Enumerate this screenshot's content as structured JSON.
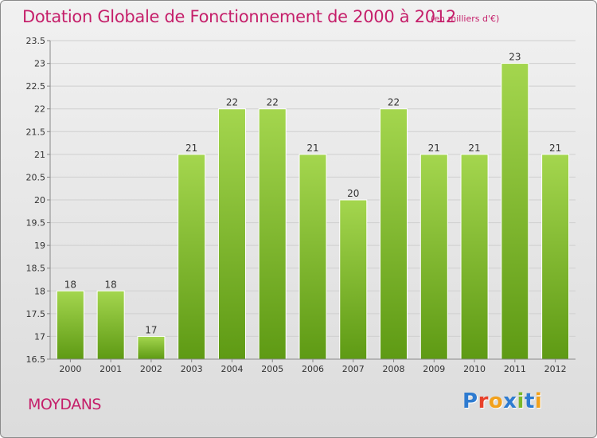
{
  "title": "Dotation Globale de Fonctionnement de 2000 à 2012",
  "unit_note": "(en milliers d'€)",
  "commune": "MOYDANS",
  "logo": {
    "text": "Proxiti",
    "colors": [
      "#2e7bd0",
      "#e8412b",
      "#f2a11c",
      "#2e7bd0",
      "#7ab829",
      "#2e7bd0",
      "#f2a11c"
    ]
  },
  "colors": {
    "title": "#c51f6a",
    "bar_top": "#a4d64e",
    "bar_bottom": "#5e9a14",
    "grid": "#cfcfcf"
  },
  "chart_data": {
    "type": "bar",
    "title": "Dotation Globale de Fonctionnement de 2000 à 2012",
    "xlabel": "",
    "ylabel": "",
    "categories": [
      "2000",
      "2001",
      "2002",
      "2003",
      "2004",
      "2005",
      "2006",
      "2007",
      "2008",
      "2009",
      "2010",
      "2011",
      "2012"
    ],
    "values": [
      18,
      18,
      17,
      21,
      22,
      22,
      21,
      20,
      22,
      21,
      21,
      23,
      21
    ],
    "ylim": [
      16.5,
      23.5
    ],
    "yticks": [
      "16.5",
      "17",
      "17.5",
      "18",
      "18.5",
      "19",
      "19.5",
      "20",
      "20.5",
      "21",
      "21.5",
      "22",
      "22.5",
      "23",
      "23.5"
    ],
    "grid": true,
    "legend": "none"
  }
}
